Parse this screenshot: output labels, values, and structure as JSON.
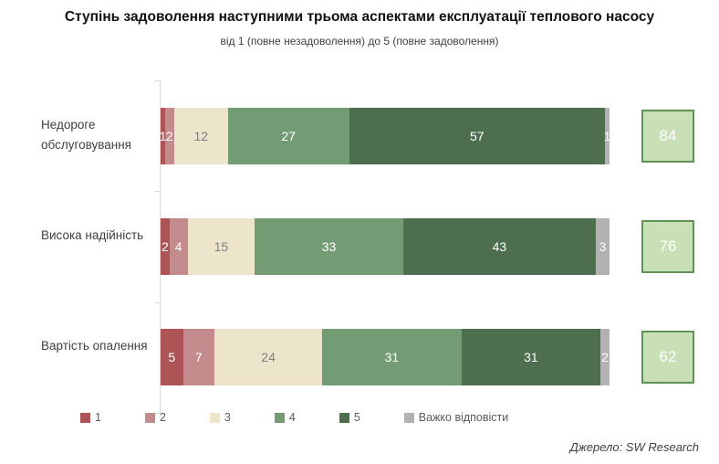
{
  "title": "Ступінь задоволення наступними трьома аспектами експлуатації теплового насосу",
  "subtitle": "від 1 (повне незадоволення) до 5 (повне задоволення)",
  "source": "Джерело: SW Research",
  "colors": {
    "rating1": "#ad5457",
    "rating2": "#c48b8c",
    "rating3": "#ece4cb",
    "rating4": "#739b74",
    "rating5": "#4e6e50",
    "dont_know": "#b2b2b2",
    "score_box_fill": "#c9e0b6",
    "score_box_border": "#5f9356",
    "axis": "#d9d9d9",
    "label_on_dark": "#ffffff",
    "label_on_cream": "#7f7f7f"
  },
  "legend": [
    {
      "label": "1",
      "color": "#ad5457"
    },
    {
      "label": "2",
      "color": "#c48b8c"
    },
    {
      "label": "3",
      "color": "#ece4cb"
    },
    {
      "label": "4",
      "color": "#739b74"
    },
    {
      "label": "5",
      "color": "#4e6e50"
    },
    {
      "label": "Важко відповісти",
      "color": "#b2b2b2"
    }
  ],
  "chart_data": {
    "type": "bar",
    "stacked": true,
    "orientation": "horizontal",
    "value_unit": "%",
    "xlim": [
      0,
      100
    ],
    "grid": false,
    "legend_position": "bottom",
    "categories": [
      "Недороге обслуговування",
      "Висока надійність",
      "Вартість опалення"
    ],
    "series": [
      {
        "name": "1",
        "color": "#ad5457",
        "values": [
          1,
          2,
          5
        ]
      },
      {
        "name": "2",
        "color": "#c48b8c",
        "values": [
          2,
          4,
          7
        ]
      },
      {
        "name": "3",
        "color": "#ece4cb",
        "values": [
          12,
          15,
          24
        ]
      },
      {
        "name": "4",
        "color": "#739b74",
        "values": [
          27,
          33,
          31
        ]
      },
      {
        "name": "5",
        "color": "#4e6e50",
        "values": [
          57,
          43,
          31
        ]
      },
      {
        "name": "Важко відповісти",
        "color": "#b2b2b2",
        "values": [
          1,
          3,
          2
        ]
      }
    ],
    "top2_scores": [
      84,
      76,
      62
    ]
  }
}
